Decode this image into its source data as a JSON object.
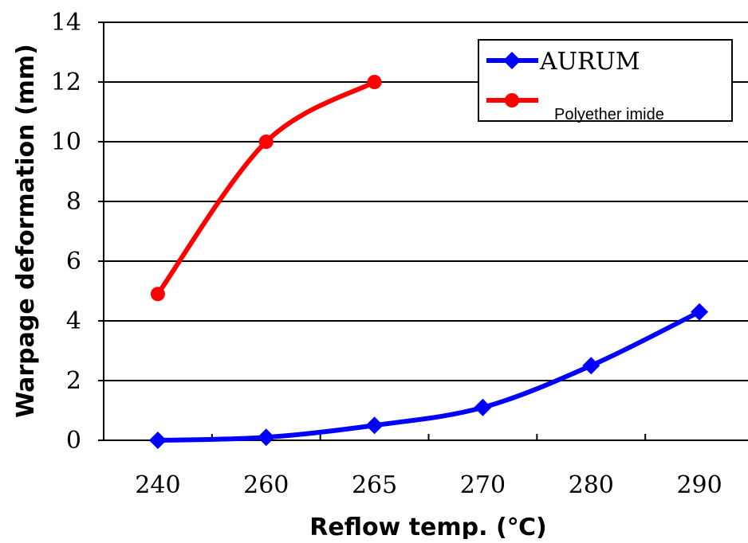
{
  "chart_data": {
    "type": "line",
    "title": "",
    "xlabel": "Reflow temp. (℃)",
    "ylabel": "Warpage deformation (mm)",
    "categories": [
      "240",
      "260",
      "265",
      "270",
      "280",
      "290"
    ],
    "ylim": [
      0,
      14
    ],
    "yticks": [
      0,
      2,
      4,
      6,
      8,
      10,
      12,
      14
    ],
    "grid": "horizontal",
    "legend_position": "top-right",
    "series": [
      {
        "name": "AURUM",
        "color": "#0000ff",
        "marker": "diamond",
        "values": [
          0,
          0.1,
          0.5,
          1.1,
          2.5,
          4.3
        ]
      },
      {
        "name": "Polyether imide",
        "color": "#ff0000",
        "marker": "circle",
        "values": [
          4.9,
          10.0,
          12.0,
          null,
          null,
          null
        ]
      }
    ]
  }
}
